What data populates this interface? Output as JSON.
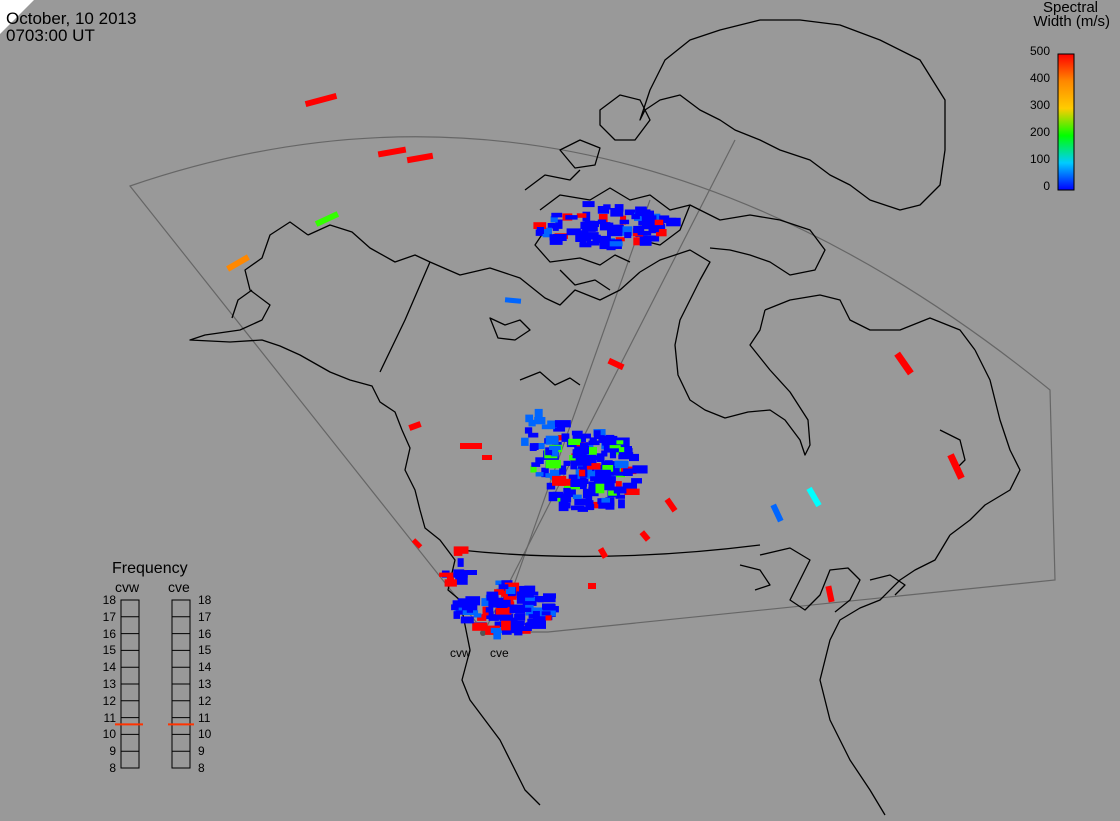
{
  "header": {
    "date": "October, 10 2013",
    "time": "0703:00 UT"
  },
  "colorbar": {
    "title_line1": "Spectral",
    "title_line2": "Width (m/s)",
    "ticks": [
      "500",
      "400",
      "300",
      "200",
      "100",
      "0"
    ],
    "min": 0,
    "max": 500,
    "colors": [
      "#0000ff",
      "#00ccff",
      "#00ff00",
      "#ffcc00",
      "#ff8800",
      "#ff0000"
    ]
  },
  "frequency_panel": {
    "title": "Frequency",
    "columns": [
      {
        "label": "cvw",
        "value_mhz": 10.6
      },
      {
        "label": "cve",
        "value_mhz": 10.6
      }
    ],
    "ticks": [
      "18",
      "17",
      "16",
      "15",
      "14",
      "13",
      "12",
      "11",
      "10",
      "9",
      "8"
    ],
    "min": 8,
    "max": 18,
    "marker_color": "#ff3300"
  },
  "radar_sites": [
    {
      "label": "cvw"
    },
    {
      "label": "cve"
    }
  ],
  "colors": {
    "background": "#999999",
    "coastline": "#000000",
    "fov": "#666666"
  }
}
